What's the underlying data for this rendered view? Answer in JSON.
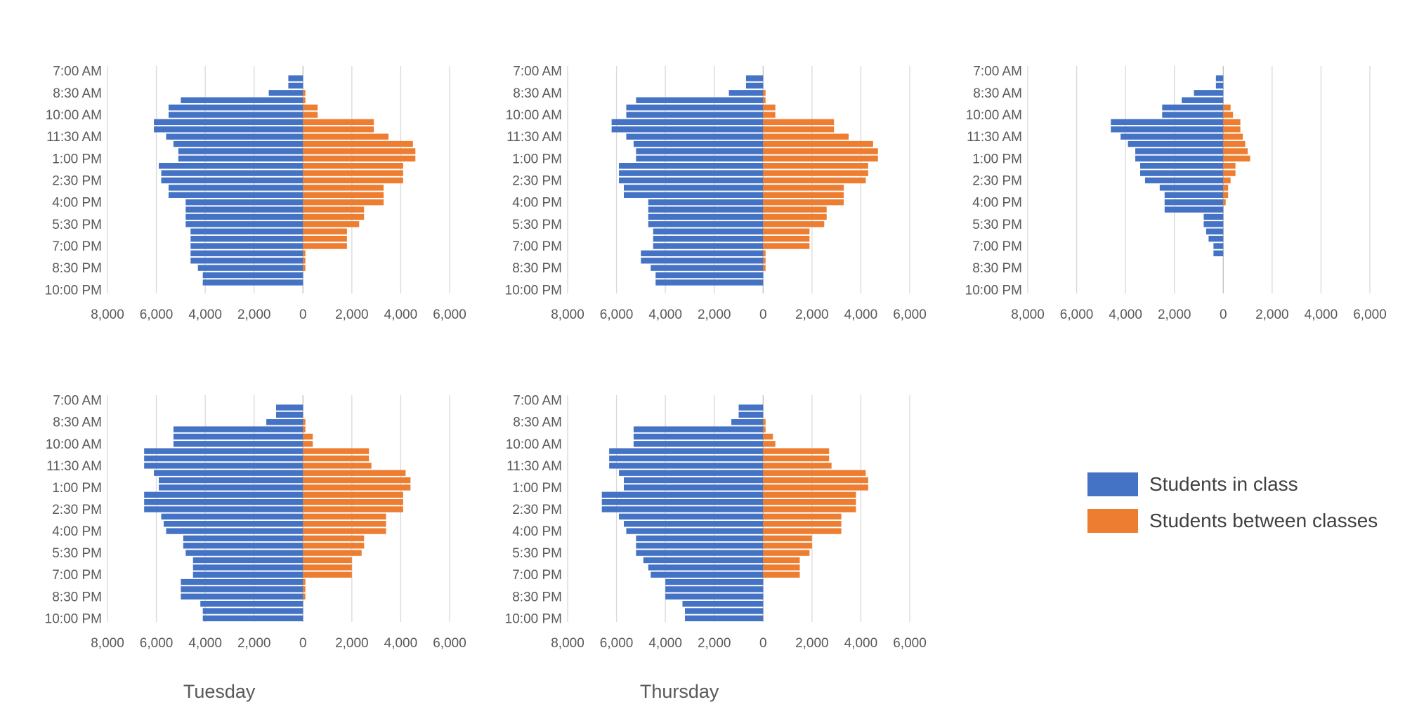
{
  "legend": {
    "in_class": {
      "label": "Students in class",
      "color": "#4472c4"
    },
    "between": {
      "label": "Students between classes",
      "color": "#ed7d31"
    }
  },
  "chart_data": [
    {
      "type": "bar",
      "title": "",
      "orientation": "horizontal-diverging",
      "y_tick_labels": [
        "7:00 AM",
        "8:30 AM",
        "10:00 AM",
        "11:30 AM",
        "1:00 PM",
        "2:30 PM",
        "4:00 PM",
        "5:30 PM",
        "7:00 PM",
        "8:30 PM",
        "10:00 PM"
      ],
      "x_tick_labels": [
        "8,000",
        "6,000",
        "4,000",
        "2,000",
        "0",
        "2,000",
        "4,000",
        "6,000"
      ],
      "xlim": [
        -8000,
        6000
      ],
      "categories": [
        "7:00 AM",
        "7:30 AM",
        "8:00 AM",
        "8:30 AM",
        "9:00 AM",
        "9:30 AM",
        "10:00 AM",
        "10:30 AM",
        "11:00 AM",
        "11:30 AM",
        "12:00 PM",
        "12:30 PM",
        "1:00 PM",
        "1:30 PM",
        "2:00 PM",
        "2:30 PM",
        "3:00 PM",
        "3:30 PM",
        "4:00 PM",
        "4:30 PM",
        "5:00 PM",
        "5:30 PM",
        "6:00 PM",
        "6:30 PM",
        "7:00 PM",
        "7:30 PM",
        "8:00 PM",
        "8:30 PM",
        "9:00 PM",
        "9:30 PM",
        "10:00 PM"
      ],
      "series": [
        {
          "name": "Students in class",
          "values": [
            0,
            600,
            600,
            1400,
            5000,
            5500,
            5500,
            6100,
            6100,
            5600,
            5300,
            5100,
            5100,
            5900,
            5800,
            5800,
            5500,
            5500,
            4800,
            4800,
            4800,
            4800,
            4600,
            4600,
            4600,
            4600,
            4600,
            4300,
            4100,
            4100,
            0
          ]
        },
        {
          "name": "Students between classes",
          "values": [
            0,
            0,
            0,
            100,
            100,
            600,
            600,
            2900,
            2900,
            3500,
            4500,
            4600,
            4600,
            4100,
            4100,
            4100,
            3300,
            3300,
            3300,
            2500,
            2500,
            2300,
            1800,
            1800,
            1800,
            100,
            100,
            100,
            0,
            0,
            0
          ]
        }
      ]
    },
    {
      "type": "bar",
      "title": "",
      "orientation": "horizontal-diverging",
      "y_tick_labels": [
        "7:00 AM",
        "8:30 AM",
        "10:00 AM",
        "11:30 AM",
        "1:00 PM",
        "2:30 PM",
        "4:00 PM",
        "5:30 PM",
        "7:00 PM",
        "8:30 PM",
        "10:00 PM"
      ],
      "x_tick_labels": [
        "8,000",
        "6,000",
        "4,000",
        "2,000",
        "0",
        "2,000",
        "4,000",
        "6,000"
      ],
      "xlim": [
        -8000,
        6000
      ],
      "categories": [
        "7:00 AM",
        "7:30 AM",
        "8:00 AM",
        "8:30 AM",
        "9:00 AM",
        "9:30 AM",
        "10:00 AM",
        "10:30 AM",
        "11:00 AM",
        "11:30 AM",
        "12:00 PM",
        "12:30 PM",
        "1:00 PM",
        "1:30 PM",
        "2:00 PM",
        "2:30 PM",
        "3:00 PM",
        "3:30 PM",
        "4:00 PM",
        "4:30 PM",
        "5:00 PM",
        "5:30 PM",
        "6:00 PM",
        "6:30 PM",
        "7:00 PM",
        "7:30 PM",
        "8:00 PM",
        "8:30 PM",
        "9:00 PM",
        "9:30 PM",
        "10:00 PM"
      ],
      "series": [
        {
          "name": "Students in class",
          "values": [
            0,
            700,
            700,
            1400,
            5200,
            5600,
            5600,
            6200,
            6200,
            5600,
            5300,
            5200,
            5200,
            5900,
            5900,
            5900,
            5700,
            5700,
            4700,
            4700,
            4700,
            4700,
            4500,
            4500,
            4500,
            5000,
            5000,
            4600,
            4400,
            4400,
            0
          ]
        },
        {
          "name": "Students between classes",
          "values": [
            0,
            0,
            0,
            100,
            100,
            500,
            500,
            2900,
            2900,
            3500,
            4500,
            4700,
            4700,
            4300,
            4300,
            4200,
            3300,
            3300,
            3300,
            2600,
            2600,
            2500,
            1900,
            1900,
            1900,
            100,
            100,
            100,
            0,
            0,
            0
          ]
        }
      ]
    },
    {
      "type": "bar",
      "title": "",
      "orientation": "horizontal-diverging",
      "y_tick_labels": [
        "7:00 AM",
        "8:30 AM",
        "10:00 AM",
        "11:30 AM",
        "1:00 PM",
        "2:30 PM",
        "4:00 PM",
        "5:30 PM",
        "7:00 PM",
        "8:30 PM",
        "10:00 PM"
      ],
      "x_tick_labels": [
        "8,000",
        "6,000",
        "4,000",
        "2,000",
        "0",
        "2,000",
        "4,000",
        "6,000"
      ],
      "xlim": [
        -8000,
        6000
      ],
      "categories": [
        "7:00 AM",
        "7:30 AM",
        "8:00 AM",
        "8:30 AM",
        "9:00 AM",
        "9:30 AM",
        "10:00 AM",
        "10:30 AM",
        "11:00 AM",
        "11:30 AM",
        "12:00 PM",
        "12:30 PM",
        "1:00 PM",
        "1:30 PM",
        "2:00 PM",
        "2:30 PM",
        "3:00 PM",
        "3:30 PM",
        "4:00 PM",
        "4:30 PM",
        "5:00 PM",
        "5:30 PM",
        "6:00 PM",
        "6:30 PM",
        "7:00 PM",
        "7:30 PM",
        "8:00 PM",
        "8:30 PM",
        "9:00 PM",
        "9:30 PM",
        "10:00 PM"
      ],
      "series": [
        {
          "name": "Students in class",
          "values": [
            0,
            300,
            300,
            1200,
            1700,
            2500,
            2500,
            4600,
            4600,
            4200,
            3900,
            3600,
            3600,
            3400,
            3400,
            3200,
            2600,
            2400,
            2400,
            2400,
            800,
            800,
            700,
            600,
            400,
            400,
            0,
            0,
            0,
            0,
            0
          ]
        },
        {
          "name": "Students between classes",
          "values": [
            0,
            0,
            0,
            0,
            0,
            300,
            400,
            700,
            700,
            800,
            900,
            1000,
            1100,
            500,
            500,
            300,
            200,
            200,
            100,
            0,
            0,
            0,
            0,
            0,
            0,
            0,
            0,
            0,
            0,
            0,
            0
          ]
        }
      ]
    },
    {
      "type": "bar",
      "title": "Tuesday",
      "orientation": "horizontal-diverging",
      "y_tick_labels": [
        "7:00 AM",
        "8:30 AM",
        "10:00 AM",
        "11:30 AM",
        "1:00 PM",
        "2:30 PM",
        "4:00 PM",
        "5:30 PM",
        "7:00 PM",
        "8:30 PM",
        "10:00 PM"
      ],
      "x_tick_labels": [
        "8,000",
        "6,000",
        "4,000",
        "2,000",
        "0",
        "2,000",
        "4,000",
        "6,000"
      ],
      "xlim": [
        -8000,
        6000
      ],
      "categories": [
        "7:00 AM",
        "7:30 AM",
        "8:00 AM",
        "8:30 AM",
        "9:00 AM",
        "9:30 AM",
        "10:00 AM",
        "10:30 AM",
        "11:00 AM",
        "11:30 AM",
        "12:00 PM",
        "12:30 PM",
        "1:00 PM",
        "1:30 PM",
        "2:00 PM",
        "2:30 PM",
        "3:00 PM",
        "3:30 PM",
        "4:00 PM",
        "4:30 PM",
        "5:00 PM",
        "5:30 PM",
        "6:00 PM",
        "6:30 PM",
        "7:00 PM",
        "7:30 PM",
        "8:00 PM",
        "8:30 PM",
        "9:00 PM",
        "9:30 PM",
        "10:00 PM"
      ],
      "series": [
        {
          "name": "Students in class",
          "values": [
            0,
            1100,
            1100,
            1500,
            5300,
            5300,
            5300,
            6500,
            6500,
            6500,
            6100,
            5900,
            5900,
            6500,
            6500,
            6500,
            5800,
            5700,
            5600,
            4900,
            4900,
            4800,
            4500,
            4500,
            4500,
            5000,
            5000,
            5000,
            4200,
            4100,
            4100
          ]
        },
        {
          "name": "Students between classes",
          "values": [
            0,
            0,
            0,
            100,
            100,
            400,
            400,
            2700,
            2700,
            2800,
            4200,
            4400,
            4400,
            4100,
            4100,
            4100,
            3400,
            3400,
            3400,
            2500,
            2500,
            2400,
            2000,
            2000,
            2000,
            100,
            100,
            100,
            0,
            0,
            0
          ]
        }
      ]
    },
    {
      "type": "bar",
      "title": "Thursday",
      "orientation": "horizontal-diverging",
      "y_tick_labels": [
        "7:00 AM",
        "8:30 AM",
        "10:00 AM",
        "11:30 AM",
        "1:00 PM",
        "2:30 PM",
        "4:00 PM",
        "5:30 PM",
        "7:00 PM",
        "8:30 PM",
        "10:00 PM"
      ],
      "x_tick_labels": [
        "8,000",
        "6,000",
        "4,000",
        "2,000",
        "0",
        "2,000",
        "4,000",
        "6,000"
      ],
      "xlim": [
        -8000,
        6000
      ],
      "categories": [
        "7:00 AM",
        "7:30 AM",
        "8:00 AM",
        "8:30 AM",
        "9:00 AM",
        "9:30 AM",
        "10:00 AM",
        "10:30 AM",
        "11:00 AM",
        "11:30 AM",
        "12:00 PM",
        "12:30 PM",
        "1:00 PM",
        "1:30 PM",
        "2:00 PM",
        "2:30 PM",
        "3:00 PM",
        "3:30 PM",
        "4:00 PM",
        "4:30 PM",
        "5:00 PM",
        "5:30 PM",
        "6:00 PM",
        "6:30 PM",
        "7:00 PM",
        "7:30 PM",
        "8:00 PM",
        "8:30 PM",
        "9:00 PM",
        "9:30 PM",
        "10:00 PM"
      ],
      "series": [
        {
          "name": "Students in class",
          "values": [
            0,
            1000,
            1000,
            1300,
            5300,
            5300,
            5300,
            6300,
            6300,
            6300,
            5900,
            5700,
            5700,
            6600,
            6600,
            6600,
            5900,
            5700,
            5600,
            5200,
            5200,
            5200,
            4900,
            4700,
            4600,
            4000,
            4000,
            4000,
            3300,
            3200,
            3200
          ]
        },
        {
          "name": "Students between classes",
          "values": [
            0,
            0,
            0,
            100,
            100,
            400,
            500,
            2700,
            2700,
            2800,
            4200,
            4300,
            4300,
            3800,
            3800,
            3800,
            3200,
            3200,
            3200,
            2000,
            2000,
            1900,
            1500,
            1500,
            1500,
            0,
            0,
            0,
            0,
            0,
            0
          ]
        }
      ]
    }
  ]
}
